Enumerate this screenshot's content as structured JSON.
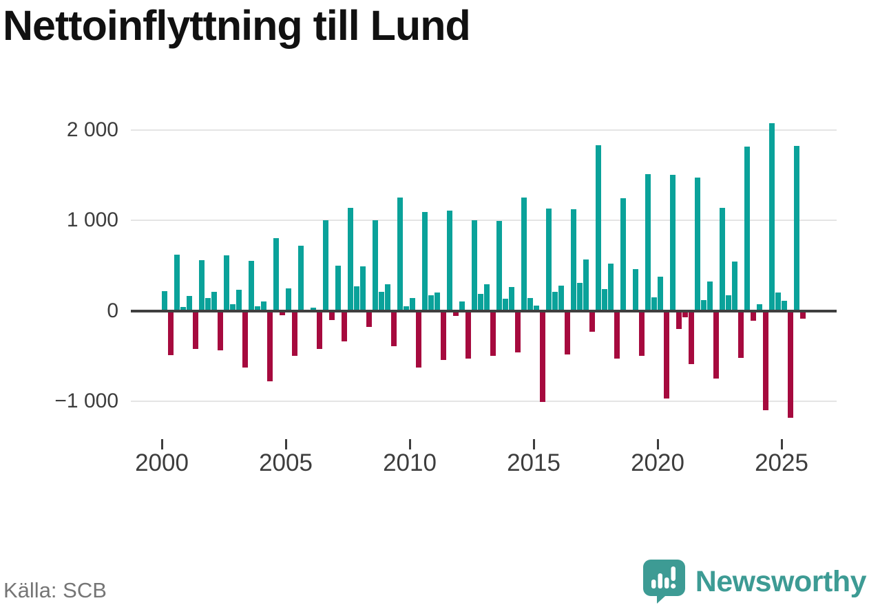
{
  "title": "Nettoinflyttning till Lund",
  "source": "Källa: SCB",
  "brand": {
    "name": "Newsworthy",
    "logo_icon": "speech-bubble-bar-chart-exclamation"
  },
  "colors": {
    "positive": "#0aa29a",
    "negative": "#a60a3e",
    "axis": "#3f3f3f",
    "grid": "#e4e4e4",
    "label": "#3d3d3d",
    "brand_teal": "#3d9b94",
    "source_gray": "#757575",
    "title_black": "#111111"
  },
  "chart_data": {
    "type": "bar",
    "title": "Nettoinflyttning till Lund",
    "xlabel": "",
    "ylabel": "",
    "period": "quarterly",
    "legend": "none",
    "grid": "horizontal",
    "ylim": [
      -1300,
      2200
    ],
    "y_ticks": [
      {
        "value": 2000,
        "label": "2 000"
      },
      {
        "value": 1000,
        "label": "1 000"
      },
      {
        "value": 0,
        "label": "0"
      },
      {
        "value": -1000,
        "label": "−1 000"
      }
    ],
    "x_ticks": [
      2000,
      2005,
      2010,
      2015,
      2020,
      2025
    ],
    "series": [
      {
        "year": 2000,
        "quarters": [
          220,
          -490,
          620,
          40
        ]
      },
      {
        "year": 2001,
        "quarters": [
          160,
          -420,
          560,
          140
        ]
      },
      {
        "year": 2002,
        "quarters": [
          210,
          -440,
          615,
          70
        ]
      },
      {
        "year": 2003,
        "quarters": [
          230,
          -630,
          555,
          50
        ]
      },
      {
        "year": 2004,
        "quarters": [
          100,
          -780,
          800,
          -50
        ]
      },
      {
        "year": 2005,
        "quarters": [
          250,
          -500,
          720,
          0
        ]
      },
      {
        "year": 2006,
        "quarters": [
          35,
          -420,
          1000,
          -100
        ]
      },
      {
        "year": 2007,
        "quarters": [
          500,
          -340,
          1140,
          270
        ]
      },
      {
        "year": 2008,
        "quarters": [
          490,
          -180,
          1000,
          210
        ]
      },
      {
        "year": 2009,
        "quarters": [
          290,
          -390,
          1250,
          50
        ]
      },
      {
        "year": 2010,
        "quarters": [
          140,
          -630,
          1090,
          170
        ]
      },
      {
        "year": 2011,
        "quarters": [
          200,
          -540,
          1110,
          -60
        ]
      },
      {
        "year": 2012,
        "quarters": [
          100,
          -530,
          1000,
          190
        ]
      },
      {
        "year": 2013,
        "quarters": [
          290,
          -500,
          990,
          130
        ]
      },
      {
        "year": 2014,
        "quarters": [
          260,
          -460,
          1250,
          140
        ]
      },
      {
        "year": 2015,
        "quarters": [
          60,
          -1010,
          1130,
          210
        ]
      },
      {
        "year": 2016,
        "quarters": [
          280,
          -480,
          1120,
          310
        ]
      },
      {
        "year": 2017,
        "quarters": [
          570,
          -230,
          1830,
          240
        ]
      },
      {
        "year": 2018,
        "quarters": [
          520,
          -530,
          1240,
          0
        ]
      },
      {
        "year": 2019,
        "quarters": [
          460,
          -500,
          1510,
          150
        ]
      },
      {
        "year": 2020,
        "quarters": [
          380,
          -970,
          1500,
          -200
        ]
      },
      {
        "year": 2021,
        "quarters": [
          -70,
          -590,
          1470,
          120
        ]
      },
      {
        "year": 2022,
        "quarters": [
          320,
          -750,
          1140,
          170
        ]
      },
      {
        "year": 2023,
        "quarters": [
          540,
          -520,
          1810,
          -110
        ]
      },
      {
        "year": 2024,
        "quarters": [
          70,
          -1100,
          2070,
          200
        ]
      },
      {
        "year": 2025,
        "quarters": [
          110,
          -1180,
          1820,
          -90
        ]
      }
    ]
  }
}
